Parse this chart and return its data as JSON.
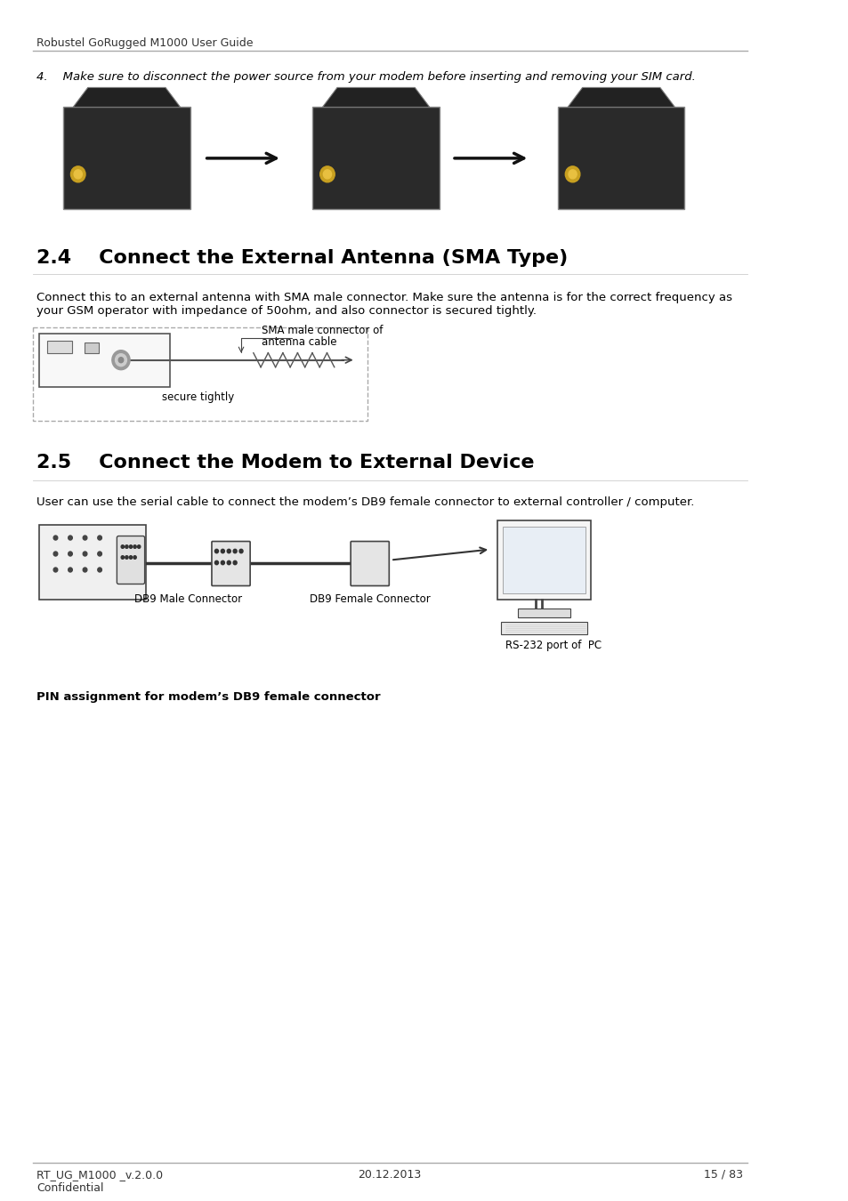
{
  "header_text": "Robustel GoRugged M1000 User Guide",
  "footer_left": "RT_UG_M1000 _v.2.0.0\nConfidential",
  "footer_center": "20.12.2013",
  "footer_right": "15 / 83",
  "step4_text": "4.    Make sure to disconnect the power source from your modem before inserting and removing your SIM card.",
  "section_24_title": "2.4    Connect the External Antenna (SMA Type)",
  "section_24_body": "Connect this to an external antenna with SMA male connector. Make sure the antenna is for the correct frequency as\nyour GSM operator with impedance of 50ohm, and also connector is secured tightly.",
  "antenna_label1": "SMA male connector of",
  "antenna_label2": "antenna cable",
  "antenna_label3": "secure tightly",
  "section_25_title": "2.5    Connect the Modem to External Device",
  "section_25_body": "User can use the serial cable to connect the modem’s DB9 female connector to external controller / computer.",
  "db9_male_label": "DB9 Male Connector",
  "db9_female_label": "DB9 Female Connector",
  "rs232_label": "RS-232 port of  PC",
  "pin_assignment_text": "PIN assignment for modem’s DB9 female connector",
  "bg_color": "#ffffff",
  "header_line_color": "#aaaaaa",
  "footer_line_color": "#aaaaaa",
  "text_color": "#000000",
  "header_fontsize": 9,
  "body_fontsize": 9.5,
  "title_fontsize": 16,
  "footer_fontsize": 9
}
